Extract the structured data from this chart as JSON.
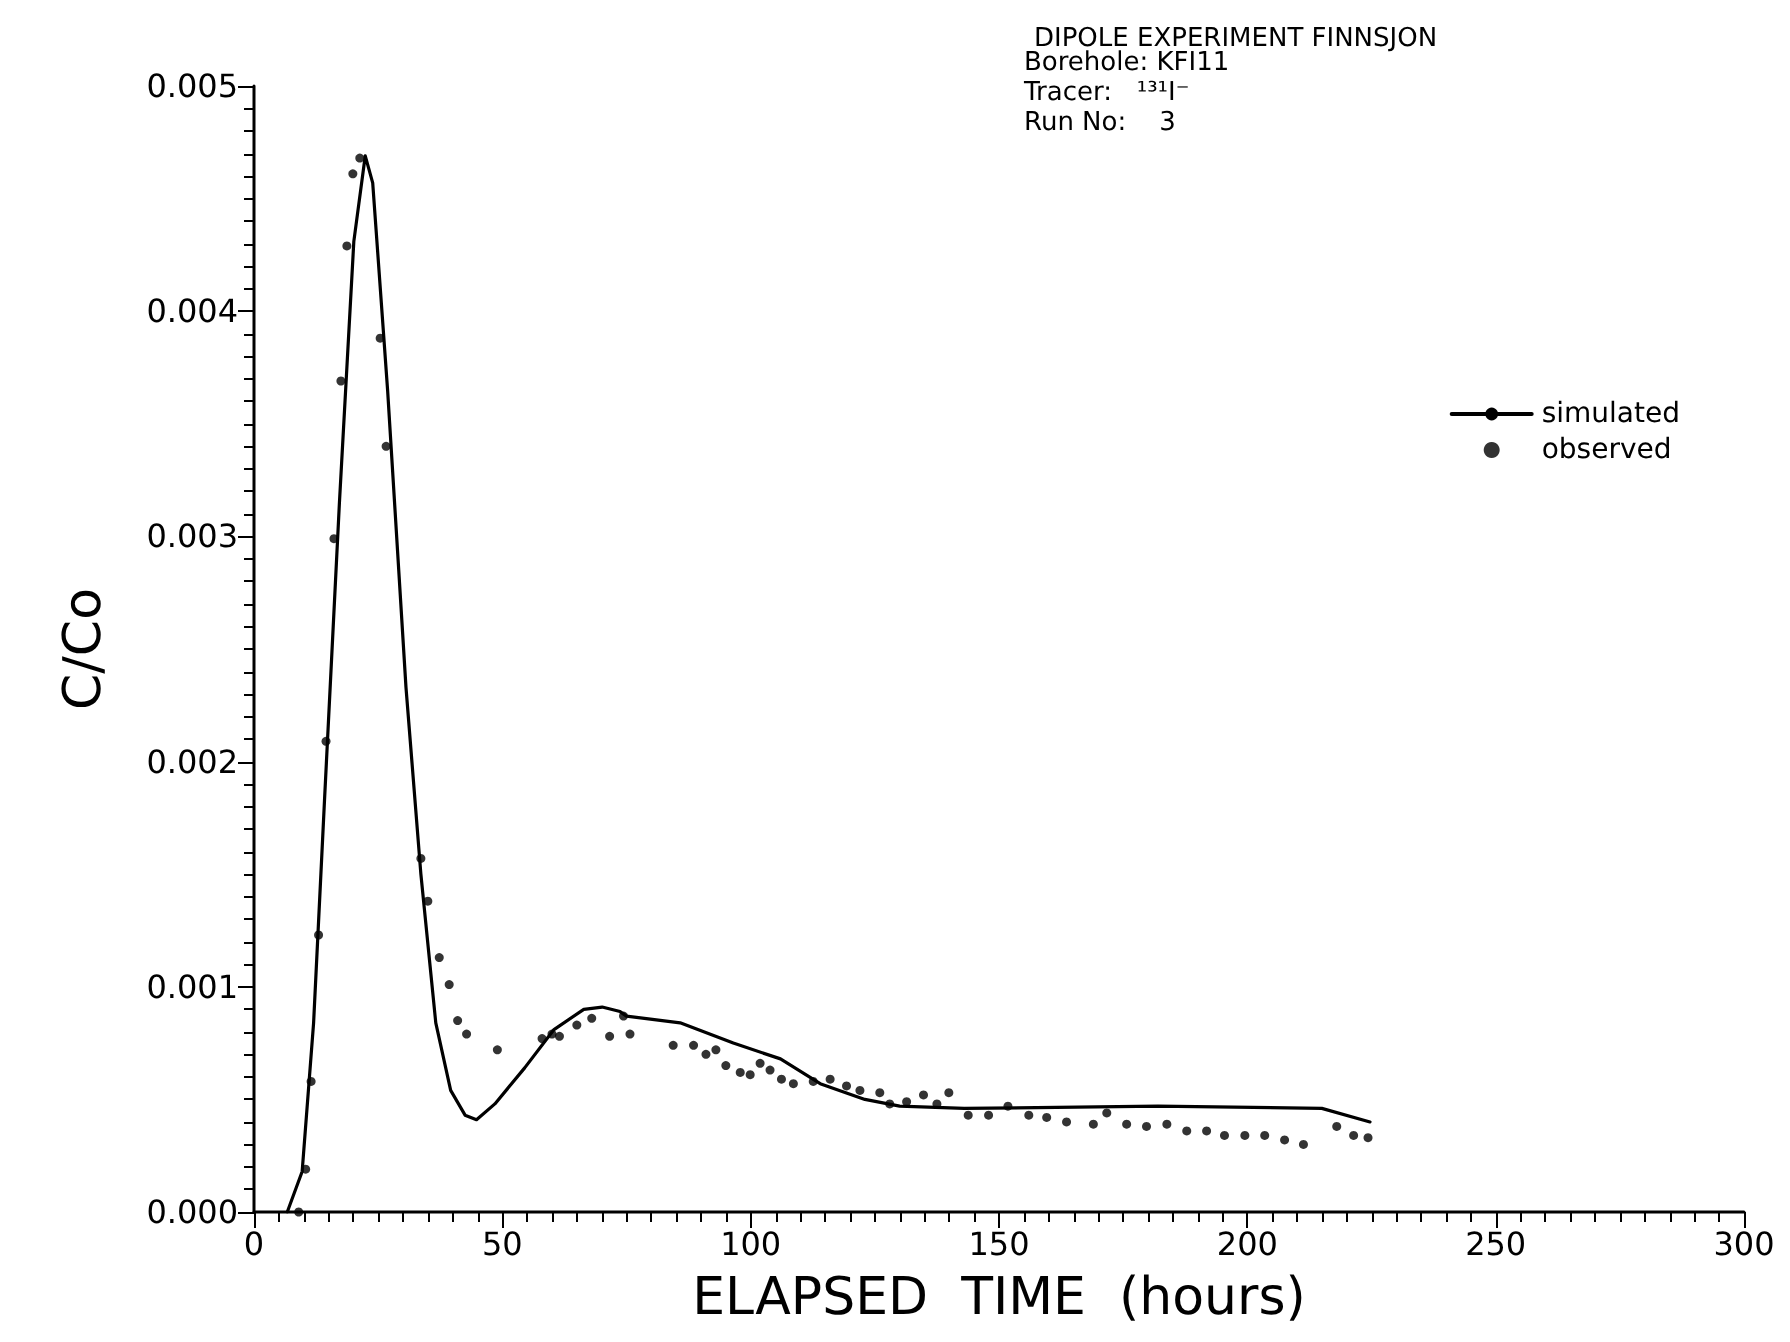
{
  "chart_data": {
    "type": "line",
    "title": "DIPOLE EXPERIMENT FINNSJON",
    "annotations": [
      "Borehole: KFI11",
      "Tracer:   ¹³¹I⁻",
      "Run No:    3"
    ],
    "xlabel": "ELAPSED  TIME  (hours)",
    "ylabel": "C/Co",
    "xlim": [
      0,
      300
    ],
    "xticks": [
      0,
      50,
      100,
      150,
      200,
      250,
      300
    ],
    "ylim": [
      0,
      0.005
    ],
    "yticks": [
      {
        "value": 0,
        "label": "0.000"
      },
      {
        "value": 0.001,
        "label": "0.001"
      },
      {
        "value": 0.002,
        "label": "0.002"
      },
      {
        "value": 0.003,
        "label": "0.003"
      },
      {
        "value": 0.004,
        "label": "0.004"
      },
      {
        "value": 0.005,
        "label": "0.005"
      }
    ],
    "grid": false,
    "legend": "right",
    "tick_labels": "xy",
    "series": [
      {
        "name": "simulated",
        "type": "line",
        "color": "#000000",
        "line_style": "solid",
        "marker": "none",
        "x": [
          6.7,
          9.7,
          12,
          14.2,
          17.2,
          20.1,
          22.4,
          23.9,
          26.9,
          30.6,
          33.6,
          36.6,
          39.6,
          42.5,
          44.8,
          48.5,
          54.5,
          60.4,
          66.4,
          70.1,
          73.7,
          75,
          85.8,
          96.5,
          106,
          114,
          123,
          130,
          143,
          182,
          215,
          224.7
        ],
        "values": [
          0,
          0.00018,
          0.00084,
          0.00183,
          0.00315,
          0.00431,
          0.00469,
          0.00457,
          0.00365,
          0.00233,
          0.0015,
          0.00084,
          0.00054,
          0.00043,
          0.00041,
          0.00048,
          0.00064,
          0.00081,
          0.0009,
          0.00091,
          0.00089,
          0.00087,
          0.00084,
          0.00075,
          0.00068,
          0.00057,
          0.0005,
          0.00047,
          0.00046,
          0.00047,
          0.00046,
          0.0004
        ]
      },
      {
        "name": "observed",
        "type": "scatter",
        "color": "#000000",
        "marker": "circle",
        "x": [
          9,
          10.4,
          11.5,
          13,
          14.5,
          16.1,
          17.5,
          18.7,
          19.9,
          21.3,
          25.4,
          26.6,
          33.6,
          35,
          37.3,
          39.3,
          41,
          42.8,
          49,
          58,
          60,
          61.5,
          65,
          68,
          71.6,
          74.4,
          75.7,
          84.4,
          88.5,
          91,
          93,
          95,
          97.9,
          99.9,
          101.9,
          103.9,
          106.2,
          108.6,
          112.6,
          116,
          119.3,
          122,
          126,
          128,
          131.4,
          134.8,
          137.5,
          139.9,
          143.8,
          147.9,
          151.8,
          156,
          159.6,
          163.6,
          169,
          171.7,
          175.7,
          179.7,
          183.8,
          187.8,
          191.8,
          195.4,
          199.5,
          203.5,
          207.5,
          211.3,
          218,
          221.4,
          224.3
        ],
        "values": [
          0,
          0.00019,
          0.00058,
          0.00123,
          0.00209,
          0.00299,
          0.00369,
          0.00429,
          0.00461,
          0.00468,
          0.00388,
          0.0034,
          0.00157,
          0.00138,
          0.00113,
          0.00101,
          0.00085,
          0.00079,
          0.00072,
          0.00077,
          0.00079,
          0.00078,
          0.00083,
          0.00086,
          0.00078,
          0.00087,
          0.00079,
          0.00074,
          0.00074,
          0.0007,
          0.00072,
          0.00065,
          0.00062,
          0.00061,
          0.00066,
          0.00063,
          0.00059,
          0.00057,
          0.00058,
          0.00059,
          0.00056,
          0.00054,
          0.00053,
          0.00048,
          0.00049,
          0.00052,
          0.00048,
          0.00053,
          0.00043,
          0.00043,
          0.00047,
          0.00043,
          0.00042,
          0.0004,
          0.00039,
          0.00044,
          0.00039,
          0.00038,
          0.00039,
          0.00036,
          0.00036,
          0.00034,
          0.00034,
          0.00034,
          0.00032,
          0.0003,
          0.00038,
          0.00034,
          0.00033
        ]
      }
    ]
  }
}
